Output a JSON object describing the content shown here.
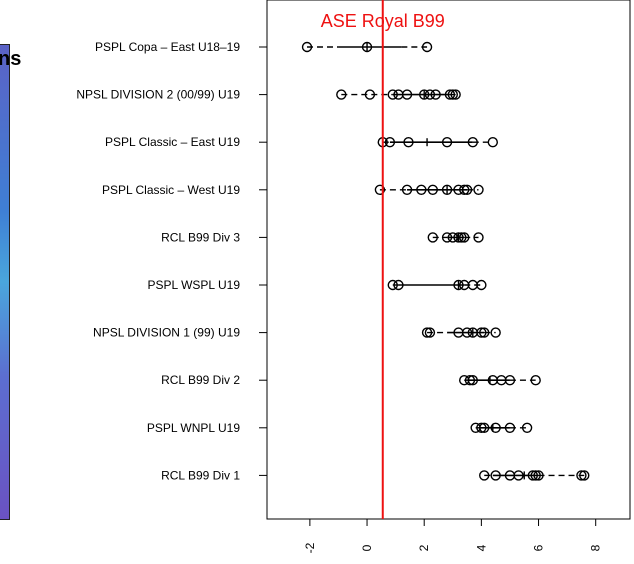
{
  "background": {
    "partial_heading": "ns"
  },
  "chart_data": {
    "type": "scatter",
    "subtype": "dot-range-plot",
    "title": "",
    "xlabel": "",
    "ylabel": "",
    "xlim": [
      -3.5,
      9.2
    ],
    "x_ticks": [
      -2,
      0,
      2,
      4,
      6,
      8
    ],
    "x_tick_labels": [
      "-2",
      "0",
      "2",
      "4",
      "6",
      "8"
    ],
    "reference_line": {
      "value": 0.55,
      "label": "ASE Royal B99",
      "color": "#ee1111"
    },
    "categories": [
      "PSPL Copa – East U18–19",
      "NPSL DIVISION 2 (00/99) U19",
      "PSPL Classic – East U19",
      "PSPL Classic – West U19",
      "RCL B99 Div 3",
      "PSPL WSPL U19",
      "NPSL DIVISION 1 (99) U19",
      "RCL B99 Div 2",
      "PSPL WNPL U19",
      "RCL B99 Div 1"
    ],
    "series": [
      {
        "points": [
          -2.1,
          0.0,
          2.1
        ],
        "whisker": [
          -2.1,
          2.1
        ],
        "box": [
          -1.0,
          1.2
        ],
        "median": 0.0
      },
      {
        "points": [
          -0.9,
          0.1,
          0.9,
          1.1,
          1.4,
          2.0,
          2.2,
          2.4,
          2.9,
          3.0,
          3.1
        ],
        "whisker": [
          -0.9,
          3.1
        ],
        "box": [
          0.9,
          2.9
        ],
        "median": 2.0
      },
      {
        "points": [
          0.55,
          0.8,
          1.45,
          2.8,
          3.7,
          4.4
        ],
        "whisker": [
          0.55,
          4.4
        ],
        "box": [
          0.8,
          3.7
        ],
        "median": 2.1
      },
      {
        "points": [
          0.45,
          1.4,
          1.9,
          2.3,
          2.8,
          3.2,
          3.4,
          3.5,
          3.9
        ],
        "whisker": [
          0.45,
          3.9
        ],
        "box": [
          1.4,
          3.5
        ],
        "median": 2.8
      },
      {
        "points": [
          2.3,
          2.8,
          3.0,
          3.2,
          3.3,
          3.4,
          3.9
        ],
        "whisker": [
          2.3,
          3.9
        ],
        "box": [
          2.8,
          3.4
        ],
        "median": 3.2
      },
      {
        "points": [
          0.9,
          1.1,
          3.2,
          3.4,
          3.7,
          4.0
        ],
        "whisker": [
          0.9,
          4.0
        ],
        "box": [
          1.1,
          3.4
        ],
        "median": 3.2
      },
      {
        "points": [
          2.1,
          2.2,
          3.2,
          3.5,
          3.7,
          4.0,
          4.1,
          4.5
        ],
        "whisker": [
          2.1,
          4.5
        ],
        "box": [
          2.8,
          4.1
        ],
        "median": 3.7
      },
      {
        "points": [
          3.4,
          3.6,
          3.7,
          4.4,
          4.7,
          5.0,
          5.9
        ],
        "whisker": [
          3.4,
          5.9
        ],
        "box": [
          3.5,
          5.0
        ],
        "median": 4.3
      },
      {
        "points": [
          3.8,
          4.0,
          4.1,
          4.5,
          5.0,
          5.6
        ],
        "whisker": [
          3.8,
          5.6
        ],
        "box": [
          3.9,
          5.0
        ],
        "median": 4.4
      },
      {
        "points": [
          4.1,
          4.5,
          5.0,
          5.3,
          5.8,
          5.9,
          6.0,
          7.5,
          7.6
        ],
        "whisker": [
          4.1,
          7.6
        ],
        "box": [
          4.4,
          6.0
        ],
        "median": 5.5
      }
    ]
  }
}
